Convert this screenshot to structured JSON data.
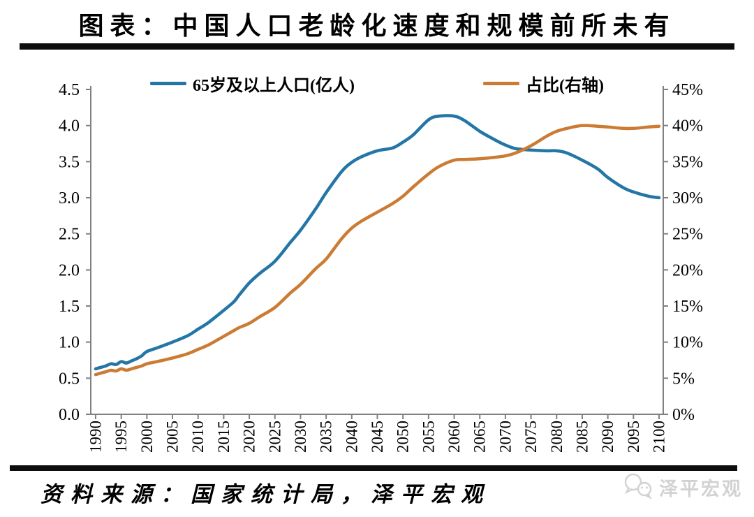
{
  "header": {
    "title": "图表：中国人口老龄化速度和规模前所未有"
  },
  "legend": [
    {
      "label": "65岁及以上人口(亿人)",
      "color": "#2376A5"
    },
    {
      "label": "占比(右轴)",
      "color": "#CB7B33"
    }
  ],
  "footer": {
    "source": "资料来源：国家统计局，泽平宏观",
    "watermark_text": "泽平宏观"
  },
  "colors": {
    "axis": "#808080",
    "tick_label": "#000000",
    "rule": "#0d0d0d",
    "watermark": "#d2d2d2",
    "series_population": "#2376A5",
    "series_share": "#CB7B33"
  },
  "chart_data": {
    "type": "line",
    "title": "图表：中国人口老龄化速度和规模前所未有",
    "xlabel": "",
    "ylabel_left": "亿人",
    "ylabel_right": "%",
    "grid": false,
    "legend_position": "top",
    "x": [
      1990,
      1991,
      1992,
      1993,
      1994,
      1995,
      1996,
      1997,
      1998,
      1999,
      2000,
      2002,
      2005,
      2008,
      2010,
      2012,
      2015,
      2017,
      2018,
      2020,
      2022,
      2025,
      2028,
      2030,
      2033,
      2035,
      2038,
      2040,
      2042,
      2045,
      2048,
      2050,
      2052,
      2055,
      2057,
      2060,
      2062,
      2065,
      2068,
      2070,
      2072,
      2075,
      2078,
      2080,
      2082,
      2085,
      2088,
      2090,
      2093,
      2095,
      2098,
      2100
    ],
    "series": [
      {
        "name": "65岁及以上人口(亿人)",
        "axis": "left",
        "color": "#2376A5",
        "values": [
          0.63,
          0.65,
          0.67,
          0.7,
          0.69,
          0.73,
          0.71,
          0.74,
          0.77,
          0.81,
          0.87,
          0.92,
          1.0,
          1.09,
          1.18,
          1.27,
          1.44,
          1.56,
          1.65,
          1.82,
          1.95,
          2.12,
          2.38,
          2.55,
          2.85,
          3.07,
          3.36,
          3.49,
          3.57,
          3.65,
          3.69,
          3.77,
          3.87,
          4.08,
          4.13,
          4.13,
          4.07,
          3.92,
          3.8,
          3.73,
          3.68,
          3.66,
          3.65,
          3.65,
          3.62,
          3.52,
          3.4,
          3.28,
          3.14,
          3.08,
          3.02,
          3.0
        ]
      },
      {
        "name": "占比(右轴)",
        "axis": "right",
        "color": "#CB7B33",
        "values": [
          5.5,
          5.7,
          5.9,
          6.1,
          6.0,
          6.3,
          6.1,
          6.3,
          6.5,
          6.7,
          7.0,
          7.3,
          7.8,
          8.4,
          9.0,
          9.6,
          10.8,
          11.6,
          12.0,
          12.6,
          13.5,
          14.8,
          16.8,
          18.0,
          20.2,
          21.5,
          24.3,
          25.8,
          26.8,
          28.0,
          29.2,
          30.2,
          31.5,
          33.3,
          34.3,
          35.2,
          35.3,
          35.4,
          35.6,
          35.8,
          36.2,
          37.2,
          38.5,
          39.2,
          39.6,
          40.0,
          39.9,
          39.8,
          39.6,
          39.6,
          39.8,
          39.9
        ]
      }
    ],
    "left_axis": {
      "range": [
        0,
        4.5
      ],
      "tick_values": [
        0,
        0.5,
        1.0,
        1.5,
        2.0,
        2.5,
        3.0,
        3.5,
        4.0,
        4.5
      ],
      "tick_labels": [
        "0.0",
        "0.5",
        "1.0",
        "1.5",
        "2.0",
        "2.5",
        "3.0",
        "3.5",
        "4.0",
        "4.5"
      ]
    },
    "right_axis": {
      "range": [
        0,
        45
      ],
      "tick_values": [
        0,
        5,
        10,
        15,
        20,
        25,
        30,
        35,
        40,
        45
      ],
      "tick_labels": [
        "0%",
        "5%",
        "10%",
        "15%",
        "20%",
        "25%",
        "30%",
        "35%",
        "40%",
        "45%"
      ]
    },
    "x_axis": {
      "range": [
        1990,
        2100
      ],
      "tick_values": [
        1990,
        1995,
        2000,
        2005,
        2010,
        2015,
        2020,
        2025,
        2030,
        2035,
        2040,
        2045,
        2050,
        2055,
        2060,
        2065,
        2070,
        2075,
        2080,
        2085,
        2090,
        2095,
        2100
      ],
      "tick_labels": [
        "1990",
        "1995",
        "2000",
        "2005",
        "2010",
        "2015",
        "2020",
        "2025",
        "2030",
        "2035",
        "2040",
        "2045",
        "2050",
        "2055",
        "2060",
        "2065",
        "2070",
        "2075",
        "2080",
        "2085",
        "2090",
        "2095",
        "2100"
      ]
    }
  }
}
